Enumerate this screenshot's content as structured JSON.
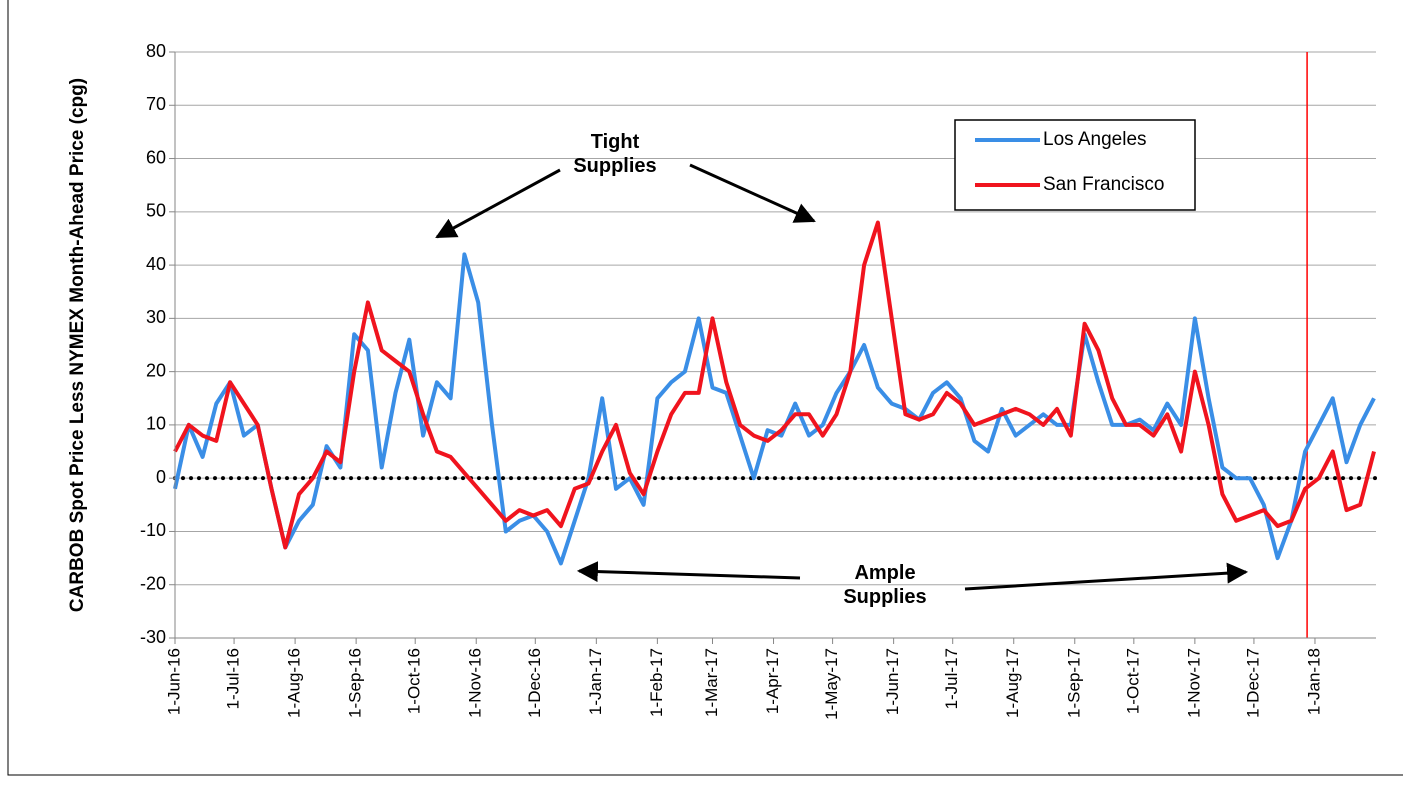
{
  "chart_data": {
    "type": "line",
    "ylabel": "CARBOB Spot Price Less NYMEX Month-Ahead Price (cpg)",
    "x": [
      "2016-06-01",
      "2016-06-08",
      "2016-06-15",
      "2016-06-22",
      "2016-06-29",
      "2016-07-06",
      "2016-07-13",
      "2016-07-20",
      "2016-07-27",
      "2016-08-03",
      "2016-08-10",
      "2016-08-17",
      "2016-08-24",
      "2016-08-31",
      "2016-09-07",
      "2016-09-14",
      "2016-09-21",
      "2016-09-28",
      "2016-10-05",
      "2016-10-12",
      "2016-10-19",
      "2016-10-26",
      "2016-11-02",
      "2016-11-09",
      "2016-11-16",
      "2016-11-23",
      "2016-11-30",
      "2016-12-07",
      "2016-12-14",
      "2016-12-21",
      "2016-12-28",
      "2017-01-04",
      "2017-01-11",
      "2017-01-18",
      "2017-01-25",
      "2017-02-01",
      "2017-02-08",
      "2017-02-15",
      "2017-02-22",
      "2017-03-01",
      "2017-03-08",
      "2017-03-15",
      "2017-03-22",
      "2017-03-29",
      "2017-04-05",
      "2017-04-12",
      "2017-04-19",
      "2017-04-26",
      "2017-05-03",
      "2017-05-10",
      "2017-05-17",
      "2017-05-24",
      "2017-05-31",
      "2017-06-07",
      "2017-06-14",
      "2017-06-21",
      "2017-06-28",
      "2017-07-05",
      "2017-07-12",
      "2017-07-19",
      "2017-07-26",
      "2017-08-02",
      "2017-08-09",
      "2017-08-16",
      "2017-08-23",
      "2017-08-30",
      "2017-09-06",
      "2017-09-13",
      "2017-09-20",
      "2017-09-27",
      "2017-10-04",
      "2017-10-11",
      "2017-10-18",
      "2017-10-25",
      "2017-11-01",
      "2017-11-08",
      "2017-11-15",
      "2017-11-22",
      "2017-11-29",
      "2017-12-06",
      "2017-12-13",
      "2017-12-20",
      "2017-12-27",
      "2018-01-03",
      "2018-01-10",
      "2018-01-17",
      "2018-01-24",
      "2018-01-31"
    ],
    "series": [
      {
        "name": "Los Angeles",
        "color": "#3a8ee6",
        "values": [
          -2,
          10,
          4,
          14,
          18,
          8,
          10,
          -2,
          -13,
          -8,
          -5,
          6,
          2,
          27,
          24,
          2,
          16,
          26,
          8,
          18,
          15,
          42,
          33,
          10,
          -10,
          -8,
          -7,
          -10,
          -16,
          -8,
          0,
          15,
          -2,
          0,
          -5,
          15,
          18,
          20,
          30,
          17,
          16,
          8,
          0,
          9,
          8,
          14,
          8,
          10,
          16,
          20,
          25,
          17,
          14,
          13,
          11,
          16,
          18,
          15,
          7,
          5,
          13,
          8,
          10,
          12,
          10,
          10,
          27,
          18,
          10,
          10,
          11,
          9,
          14,
          10,
          30,
          15,
          2,
          0,
          0,
          -5,
          -15,
          -8,
          5,
          10,
          15,
          3,
          10,
          15
        ]
      },
      {
        "name": "San Francisco",
        "color": "#f0141e",
        "values": [
          5,
          10,
          8,
          7,
          18,
          14,
          10,
          -2,
          -13,
          -3,
          0,
          5,
          3,
          20,
          33,
          24,
          22,
          20,
          12,
          5,
          4,
          1,
          -2,
          -5,
          -8,
          -6,
          -7,
          -6,
          -9,
          -2,
          -1,
          5,
          10,
          1,
          -3,
          5,
          12,
          16,
          16,
          30,
          18,
          10,
          8,
          7,
          9,
          12,
          12,
          8,
          12,
          20,
          40,
          48,
          30,
          12,
          11,
          12,
          16,
          14,
          10,
          11,
          12,
          13,
          12,
          10,
          13,
          8,
          29,
          24,
          15,
          10,
          10,
          8,
          12,
          5,
          20,
          10,
          -3,
          -8,
          -7,
          -6,
          -9,
          -8,
          -2,
          0,
          5,
          -6,
          -5,
          5
        ]
      }
    ],
    "xlim": [
      "2016-06-01",
      "2018-02-01"
    ],
    "xticks": [
      {
        "value": "2016-06-01",
        "label": "1-Jun-16"
      },
      {
        "value": "2016-07-01",
        "label": "1-Jul-16"
      },
      {
        "value": "2016-08-01",
        "label": "1-Aug-16"
      },
      {
        "value": "2016-09-01",
        "label": "1-Sep-16"
      },
      {
        "value": "2016-10-01",
        "label": "1-Oct-16"
      },
      {
        "value": "2016-11-01",
        "label": "1-Nov-16"
      },
      {
        "value": "2016-12-01",
        "label": "1-Dec-16"
      },
      {
        "value": "2017-01-01",
        "label": "1-Jan-17"
      },
      {
        "value": "2017-02-01",
        "label": "1-Feb-17"
      },
      {
        "value": "2017-03-01",
        "label": "1-Mar-17"
      },
      {
        "value": "2017-04-01",
        "label": "1-Apr-17"
      },
      {
        "value": "2017-05-01",
        "label": "1-May-17"
      },
      {
        "value": "2017-06-01",
        "label": "1-Jun-17"
      },
      {
        "value": "2017-07-01",
        "label": "1-Jul-17"
      },
      {
        "value": "2017-08-01",
        "label": "1-Aug-17"
      },
      {
        "value": "2017-09-01",
        "label": "1-Sep-17"
      },
      {
        "value": "2017-10-01",
        "label": "1-Oct-17"
      },
      {
        "value": "2017-11-01",
        "label": "1-Nov-17"
      },
      {
        "value": "2017-12-01",
        "label": "1-Dec-17"
      },
      {
        "value": "2018-01-01",
        "label": "1-Jan-18"
      }
    ],
    "ylim": [
      -30,
      80
    ],
    "yticks": [
      -30,
      -20,
      -10,
      0,
      10,
      20,
      30,
      40,
      50,
      60,
      70,
      80
    ],
    "grid": true,
    "zero_line": true,
    "vline": {
      "x": "2017-12-28",
      "color": "#ff0000"
    },
    "legend": "upper right",
    "annotations": [
      {
        "text": "Tight Supplies"
      },
      {
        "text": "Ample Supplies"
      }
    ]
  }
}
